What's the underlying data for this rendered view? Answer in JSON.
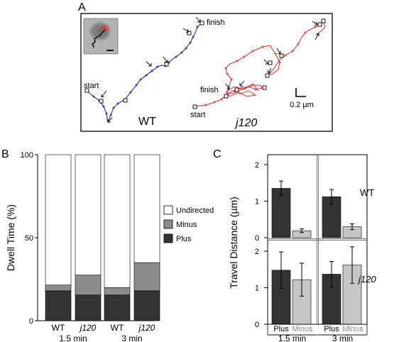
{
  "panel_a": {
    "label": "A",
    "wt_track": {
      "start_label": "start",
      "finish_label": "finish",
      "genotype_label": "WT",
      "color": "#2b2f9e"
    },
    "j120_track": {
      "start_label": "start",
      "finish_label": "finish",
      "genotype_label": "j120",
      "color": "#e8262a"
    },
    "scale_bar_label": "0.2 µm"
  },
  "panel_b": {
    "label": "B",
    "legend": [
      "Undirected",
      "Minus",
      "Plus"
    ],
    "colors": {
      "Undirected": "#ffffff",
      "Minus": "#8c8c8c",
      "Plus": "#333333"
    }
  },
  "panel_c": {
    "label": "C",
    "row_labels": [
      "WT",
      "j120"
    ],
    "col_labels": [
      "1.5 min",
      "3 min"
    ],
    "bar_labels": [
      "Plus",
      "Minus"
    ],
    "colors": {
      "Plus": "#333333",
      "Minus": "#c6c6c6"
    }
  },
  "chart_data": [
    {
      "id": "B",
      "type": "bar",
      "stacked": true,
      "categories": [
        "WT",
        "j120",
        "WT",
        "j120"
      ],
      "group_labels": [
        "1.5 min",
        "3 min"
      ],
      "ylabel": "Dwell Time (%)",
      "ylim": [
        0,
        100
      ],
      "yticks": [
        "0",
        "50",
        "100"
      ],
      "series": [
        {
          "name": "Plus",
          "values": [
            18,
            15.5,
            15.5,
            18
          ]
        },
        {
          "name": "Minus",
          "values": [
            3.5,
            12,
            4.5,
            17
          ]
        },
        {
          "name": "Undirected",
          "values": [
            78.5,
            72.5,
            80,
            65
          ]
        }
      ]
    },
    {
      "id": "C",
      "type": "bar",
      "ylabel": "Travel Distance (µm)",
      "ylim": [
        0,
        2
      ],
      "yticks": [
        "0",
        "1",
        "2"
      ],
      "panels": [
        {
          "row": "WT",
          "col": "1.5 min",
          "values": {
            "Plus": 1.35,
            "Minus": 0.19
          },
          "errors": {
            "Plus": 0.2,
            "Minus": 0.05
          }
        },
        {
          "row": "WT",
          "col": "3 min",
          "values": {
            "Plus": 1.12,
            "Minus": 0.3
          },
          "errors": {
            "Plus": 0.2,
            "Minus": 0.08
          }
        },
        {
          "row": "j120",
          "col": "1.5 min",
          "values": {
            "Plus": 1.48,
            "Minus": 1.22
          },
          "errors": {
            "Plus": 0.5,
            "Minus": 0.45
          }
        },
        {
          "row": "j120",
          "col": "3 min",
          "values": {
            "Plus": 1.37,
            "Minus": 1.62
          },
          "errors": {
            "Plus": 0.35,
            "Minus": 0.5
          }
        }
      ]
    }
  ]
}
